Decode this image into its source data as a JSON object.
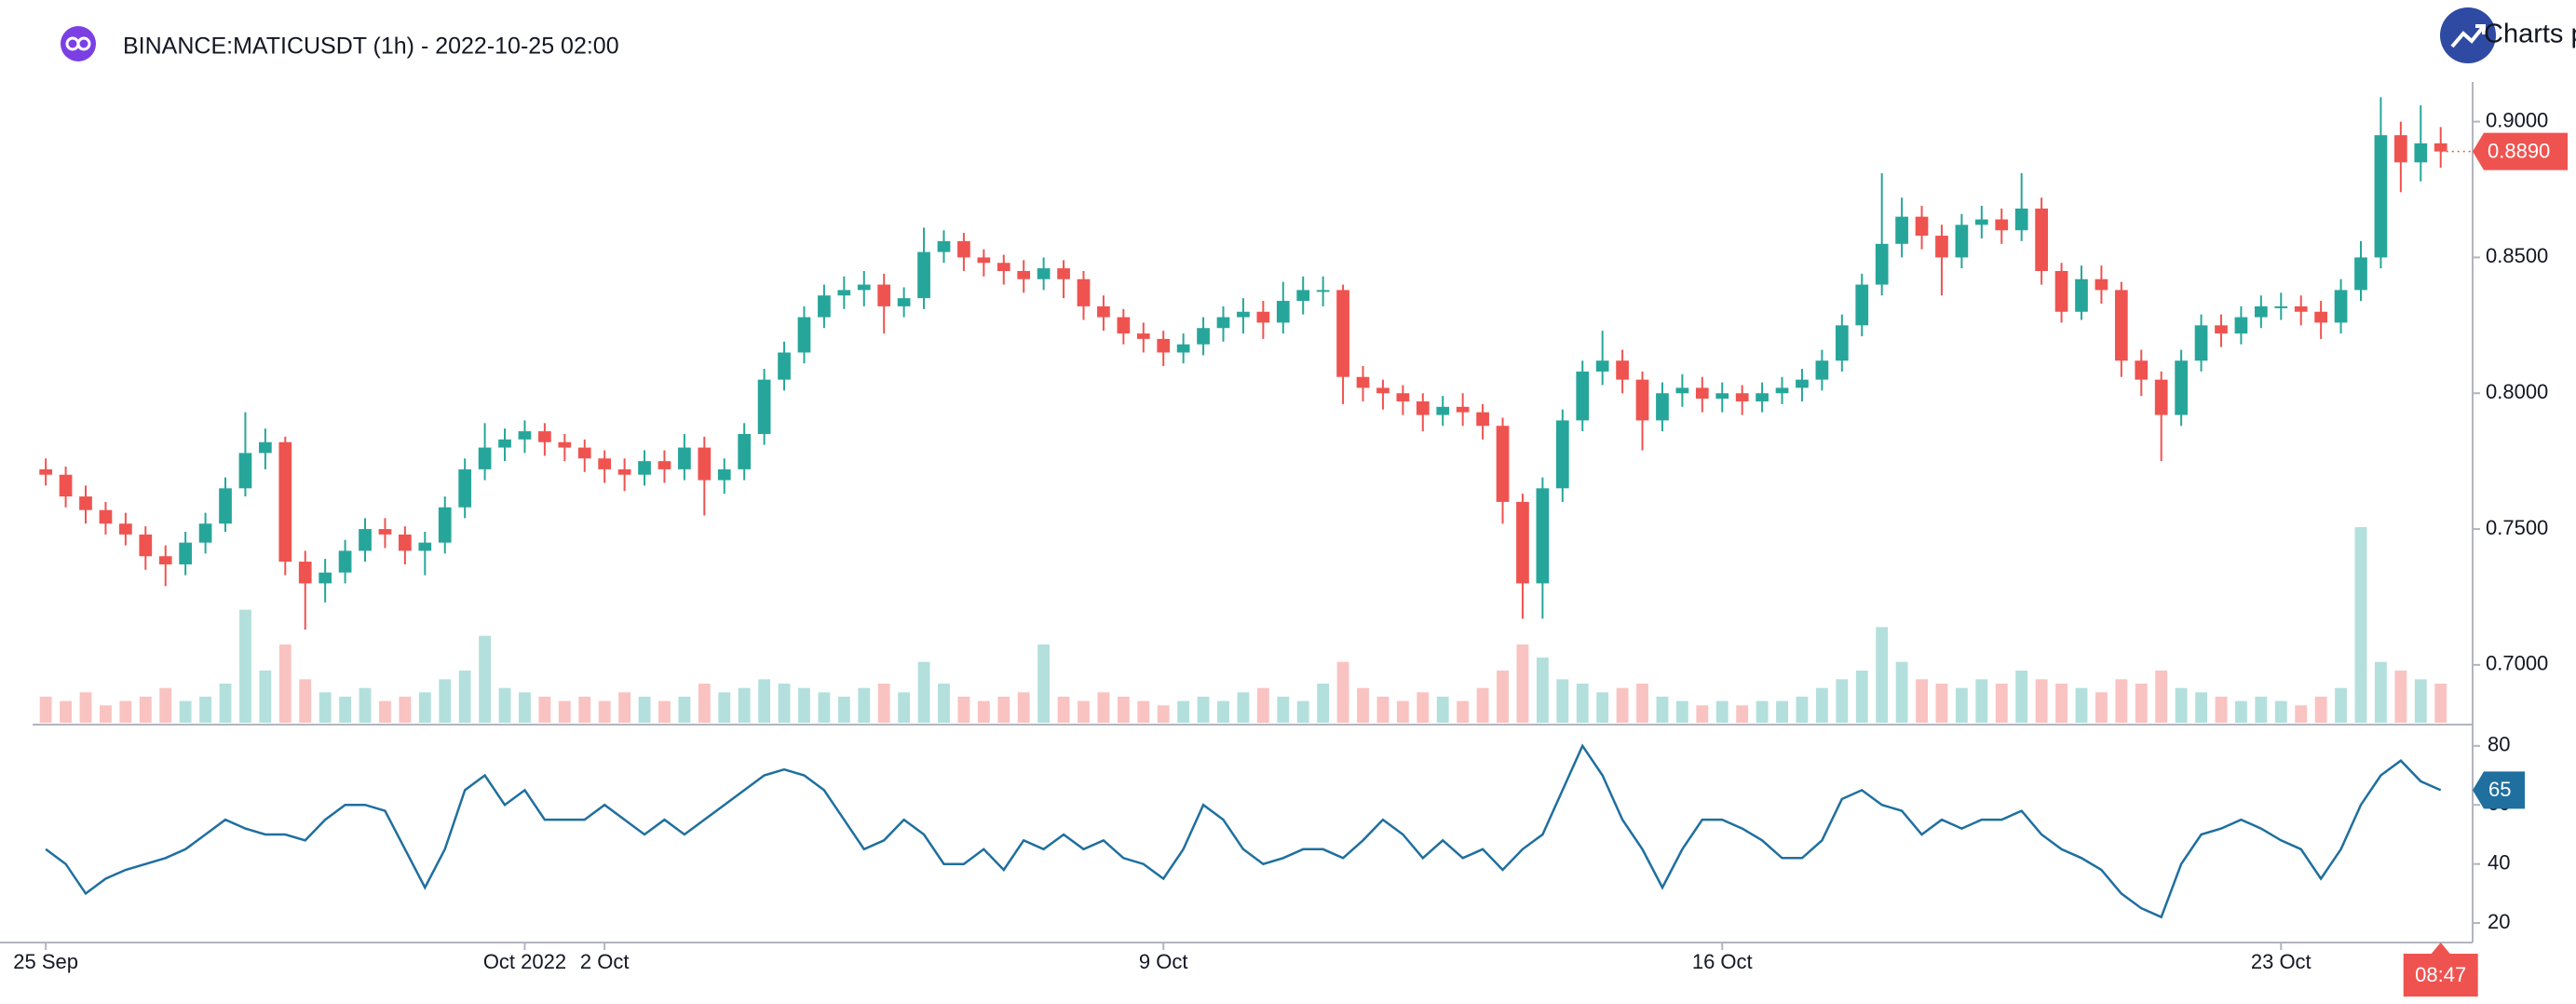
{
  "header": {
    "brand_text": "Charts p"
  },
  "countdown": "08:47",
  "chart_data": {
    "type": "candlestick",
    "title": "BINANCE:MATICUSDT (1h) - 2022-10-25 02:00",
    "colors": {
      "up": "#26a69a",
      "down": "#ef5350"
    },
    "xlim": [
      -0.66,
      121.6
    ],
    "xticks": [
      {
        "value": 0,
        "label": "25 Sep"
      },
      {
        "value": 24,
        "label": "Oct 2022"
      },
      {
        "value": 28,
        "label": "2 Oct"
      },
      {
        "value": 56,
        "label": "9 Oct"
      },
      {
        "value": 84,
        "label": "16 Oct"
      },
      {
        "value": 112,
        "label": "23 Oct"
      }
    ],
    "ylim": [
      0.6787,
      0.9146
    ],
    "yticks": [
      {
        "value": 0.7,
        "label": "0.7000"
      },
      {
        "value": 0.75,
        "label": "0.7500"
      },
      {
        "value": 0.8,
        "label": "0.8000"
      },
      {
        "value": 0.85,
        "label": "0.8500"
      },
      {
        "value": 0.9,
        "label": "0.9000"
      }
    ],
    "last_price_label": "0.8890",
    "open": [
      0.772,
      0.77,
      0.762,
      0.757,
      0.752,
      0.748,
      0.74,
      0.737,
      0.745,
      0.752,
      0.765,
      0.778,
      0.782,
      0.738,
      0.73,
      0.734,
      0.742,
      0.75,
      0.748,
      0.742,
      0.745,
      0.758,
      0.772,
      0.78,
      0.783,
      0.786,
      0.782,
      0.78,
      0.776,
      0.772,
      0.77,
      0.775,
      0.772,
      0.78,
      0.768,
      0.772,
      0.785,
      0.805,
      0.815,
      0.828,
      0.836,
      0.838,
      0.84,
      0.832,
      0.835,
      0.852,
      0.856,
      0.85,
      0.848,
      0.845,
      0.842,
      0.846,
      0.842,
      0.832,
      0.828,
      0.822,
      0.82,
      0.815,
      0.818,
      0.824,
      0.828,
      0.83,
      0.826,
      0.834,
      0.838,
      0.838,
      0.806,
      0.802,
      0.8,
      0.797,
      0.792,
      0.795,
      0.793,
      0.788,
      0.76,
      0.73,
      0.765,
      0.79,
      0.808,
      0.812,
      0.805,
      0.79,
      0.8,
      0.802,
      0.798,
      0.8,
      0.797,
      0.8,
      0.802,
      0.805,
      0.812,
      0.825,
      0.84,
      0.855,
      0.865,
      0.858,
      0.85,
      0.862,
      0.864,
      0.86,
      0.868,
      0.845,
      0.83,
      0.842,
      0.838,
      0.812,
      0.805,
      0.792,
      0.812,
      0.825,
      0.822,
      0.828,
      0.832,
      0.832,
      0.83,
      0.826,
      0.838,
      0.85,
      0.895,
      0.885,
      0.892
    ],
    "high": [
      0.776,
      0.773,
      0.766,
      0.76,
      0.756,
      0.751,
      0.744,
      0.749,
      0.756,
      0.769,
      0.793,
      0.787,
      0.784,
      0.742,
      0.739,
      0.746,
      0.754,
      0.754,
      0.751,
      0.749,
      0.762,
      0.776,
      0.789,
      0.787,
      0.79,
      0.789,
      0.785,
      0.783,
      0.779,
      0.776,
      0.779,
      0.779,
      0.785,
      0.784,
      0.776,
      0.789,
      0.809,
      0.819,
      0.832,
      0.84,
      0.843,
      0.845,
      0.844,
      0.839,
      0.861,
      0.86,
      0.859,
      0.853,
      0.851,
      0.849,
      0.85,
      0.849,
      0.845,
      0.836,
      0.831,
      0.826,
      0.823,
      0.822,
      0.828,
      0.832,
      0.835,
      0.834,
      0.841,
      0.843,
      0.843,
      0.84,
      0.81,
      0.805,
      0.803,
      0.8,
      0.799,
      0.8,
      0.796,
      0.791,
      0.763,
      0.769,
      0.794,
      0.812,
      0.823,
      0.816,
      0.808,
      0.804,
      0.807,
      0.806,
      0.804,
      0.803,
      0.804,
      0.806,
      0.809,
      0.816,
      0.829,
      0.844,
      0.881,
      0.872,
      0.869,
      0.862,
      0.866,
      0.869,
      0.868,
      0.881,
      0.872,
      0.848,
      0.847,
      0.847,
      0.841,
      0.816,
      0.808,
      0.816,
      0.829,
      0.829,
      0.832,
      0.836,
      0.837,
      0.836,
      0.834,
      0.842,
      0.856,
      0.909,
      0.9,
      0.906,
      0.898
    ],
    "low": [
      0.766,
      0.758,
      0.752,
      0.748,
      0.744,
      0.735,
      0.729,
      0.733,
      0.741,
      0.749,
      0.762,
      0.772,
      0.733,
      0.713,
      0.723,
      0.73,
      0.738,
      0.743,
      0.737,
      0.733,
      0.741,
      0.754,
      0.768,
      0.775,
      0.778,
      0.777,
      0.775,
      0.771,
      0.767,
      0.764,
      0.766,
      0.767,
      0.768,
      0.755,
      0.763,
      0.768,
      0.781,
      0.801,
      0.811,
      0.824,
      0.831,
      0.832,
      0.822,
      0.828,
      0.831,
      0.848,
      0.845,
      0.843,
      0.84,
      0.837,
      0.838,
      0.835,
      0.827,
      0.823,
      0.818,
      0.815,
      0.81,
      0.811,
      0.814,
      0.819,
      0.822,
      0.82,
      0.822,
      0.829,
      0.832,
      0.796,
      0.797,
      0.794,
      0.792,
      0.786,
      0.788,
      0.788,
      0.783,
      0.752,
      0.717,
      0.717,
      0.76,
      0.786,
      0.803,
      0.8,
      0.779,
      0.786,
      0.795,
      0.793,
      0.793,
      0.792,
      0.793,
      0.796,
      0.797,
      0.801,
      0.808,
      0.821,
      0.836,
      0.85,
      0.853,
      0.836,
      0.846,
      0.857,
      0.855,
      0.856,
      0.84,
      0.826,
      0.827,
      0.833,
      0.806,
      0.799,
      0.775,
      0.788,
      0.808,
      0.817,
      0.818,
      0.824,
      0.827,
      0.825,
      0.82,
      0.822,
      0.834,
      0.846,
      0.874,
      0.878,
      0.883
    ],
    "close": [
      0.77,
      0.762,
      0.757,
      0.752,
      0.748,
      0.74,
      0.737,
      0.745,
      0.752,
      0.765,
      0.778,
      0.782,
      0.738,
      0.73,
      0.734,
      0.742,
      0.75,
      0.748,
      0.742,
      0.745,
      0.758,
      0.772,
      0.78,
      0.783,
      0.786,
      0.782,
      0.78,
      0.776,
      0.772,
      0.77,
      0.775,
      0.772,
      0.78,
      0.768,
      0.772,
      0.785,
      0.805,
      0.815,
      0.828,
      0.836,
      0.838,
      0.84,
      0.832,
      0.835,
      0.852,
      0.856,
      0.85,
      0.848,
      0.845,
      0.842,
      0.846,
      0.842,
      0.832,
      0.828,
      0.822,
      0.82,
      0.815,
      0.818,
      0.824,
      0.828,
      0.83,
      0.826,
      0.834,
      0.838,
      0.838,
      0.806,
      0.802,
      0.8,
      0.797,
      0.792,
      0.795,
      0.793,
      0.788,
      0.76,
      0.73,
      0.765,
      0.79,
      0.808,
      0.812,
      0.805,
      0.79,
      0.8,
      0.802,
      0.798,
      0.8,
      0.797,
      0.8,
      0.802,
      0.805,
      0.812,
      0.825,
      0.84,
      0.855,
      0.865,
      0.858,
      0.85,
      0.862,
      0.864,
      0.86,
      0.868,
      0.845,
      0.83,
      0.842,
      0.838,
      0.812,
      0.805,
      0.792,
      0.812,
      0.825,
      0.822,
      0.828,
      0.832,
      0.832,
      0.83,
      0.826,
      0.838,
      0.85,
      0.895,
      0.885,
      0.892,
      0.889
    ],
    "volume_lim": [
      0,
      60
    ],
    "volume": [
      6,
      5,
      7,
      4,
      5,
      6,
      8,
      5,
      6,
      9,
      26,
      12,
      18,
      10,
      7,
      6,
      8,
      5,
      6,
      7,
      10,
      12,
      20,
      8,
      7,
      6,
      5,
      6,
      5,
      7,
      6,
      5,
      6,
      9,
      7,
      8,
      10,
      9,
      8,
      7,
      6,
      8,
      9,
      7,
      14,
      9,
      6,
      5,
      6,
      7,
      18,
      6,
      5,
      7,
      6,
      5,
      4,
      5,
      6,
      5,
      7,
      8,
      6,
      5,
      9,
      14,
      8,
      6,
      5,
      7,
      6,
      5,
      8,
      12,
      18,
      15,
      10,
      9,
      7,
      8,
      9,
      6,
      5,
      4,
      5,
      4,
      5,
      5,
      6,
      8,
      10,
      12,
      22,
      14,
      10,
      9,
      8,
      10,
      9,
      12,
      10,
      9,
      8,
      7,
      10,
      9,
      12,
      8,
      7,
      6,
      5,
      6,
      5,
      4,
      6,
      8,
      45,
      14,
      12,
      10,
      9
    ],
    "rsi": {
      "color": "#1f6f9f",
      "ylim": [
        13.4,
        87.2
      ],
      "yticks": [
        20,
        40,
        60,
        80
      ],
      "values": [
        45,
        40,
        30,
        35,
        38,
        40,
        42,
        45,
        50,
        55,
        52,
        50,
        50,
        48,
        55,
        60,
        60,
        58,
        45,
        32,
        45,
        65,
        70,
        60,
        65,
        55,
        55,
        55,
        60,
        55,
        50,
        55,
        50,
        55,
        60,
        65,
        70,
        72,
        70,
        65,
        55,
        45,
        48,
        55,
        50,
        40,
        40,
        45,
        38,
        48,
        45,
        50,
        45,
        48,
        42,
        40,
        35,
        45,
        60,
        55,
        45,
        40,
        42,
        45,
        45,
        42,
        48,
        55,
        50,
        42,
        48,
        42,
        45,
        38,
        45,
        50,
        65,
        80,
        70,
        55,
        45,
        32,
        45,
        55,
        55,
        52,
        48,
        42,
        42,
        48,
        62,
        65,
        60,
        58,
        50,
        55,
        52,
        55,
        55,
        58,
        50,
        45,
        42,
        38,
        30,
        25,
        22,
        40,
        50,
        52,
        55,
        52,
        48,
        45,
        35,
        45,
        60,
        70,
        75,
        68,
        65
      ]
    }
  }
}
